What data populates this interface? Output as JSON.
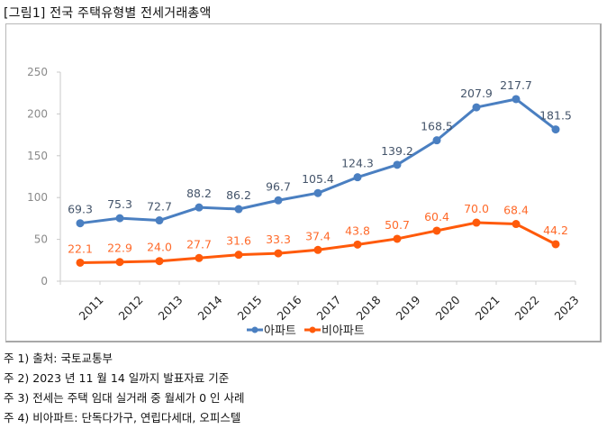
{
  "title": "[그림1] 전국 주택유형별 전세거래총액",
  "chart_data": {
    "type": "line",
    "title": "[그림1] 전국 주택유형별 전세거래총액",
    "xlabel": "",
    "ylabel": "",
    "categories": [
      "2011",
      "2012",
      "2013",
      "2014",
      "2015",
      "2016",
      "2017",
      "2018",
      "2019",
      "2020",
      "2021",
      "2022",
      "2023"
    ],
    "ylim": [
      0,
      250
    ],
    "yticks": [
      "0",
      "50",
      "100",
      "150",
      "200",
      "250"
    ],
    "grid": false,
    "legend": "bottom",
    "series": [
      {
        "name": "아파트",
        "color": "#4a7fc1",
        "label_color": "#44546a",
        "values": [
          69.3,
          75.3,
          72.7,
          88.2,
          86.2,
          96.7,
          105.4,
          124.3,
          139.2,
          168.5,
          207.9,
          217.7,
          181.5
        ],
        "labels": [
          "69.3",
          "75.3",
          "72.7",
          "88.2",
          "86.2",
          "96.7",
          "105.4",
          "124.3",
          "139.2",
          "168.5",
          "207.9",
          "217.7",
          "181.5"
        ]
      },
      {
        "name": "비아파트",
        "color": "#ff5a0a",
        "label_color": "#ff6a2a",
        "values": [
          22.1,
          22.9,
          24.0,
          27.7,
          31.6,
          33.3,
          37.4,
          43.8,
          50.7,
          60.4,
          70.0,
          68.4,
          44.2
        ],
        "labels": [
          "22.1",
          "22.9",
          "24.0",
          "27.7",
          "31.6",
          "33.3",
          "37.4",
          "43.8",
          "50.7",
          "60.4",
          "70.0",
          "68.4",
          "44.2"
        ]
      }
    ]
  },
  "notes": [
    "주 1)  출처: 국토교통부",
    "주 2) 2023 년  11 월 14 일까지  발표자료  기준",
    "주 3)  전세는  주택  임대  실거래  중  월세가  0 인  사례",
    "주 4)  비아파트: 단독다가구,  연립다세대,  오피스텔"
  ]
}
